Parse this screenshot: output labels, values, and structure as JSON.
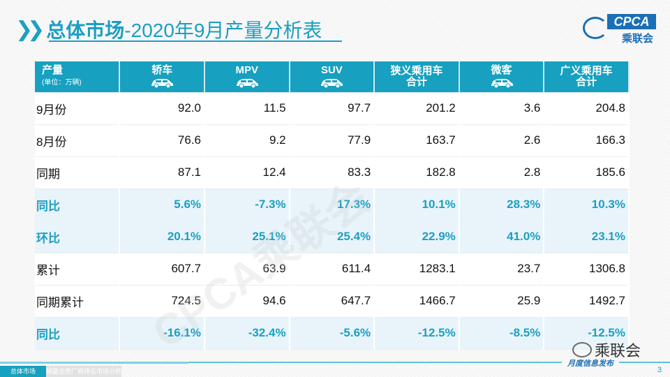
{
  "title": {
    "bold": "总体市场",
    "rest": "-2020年9月产量分析表"
  },
  "logo": {
    "text": "CPCA",
    "cn": "乘联会"
  },
  "header": {
    "first": "产量",
    "unit": "(单位：万辆)",
    "cols": [
      "轿车",
      "MPV",
      "SUV",
      "狭义乘用车\n合计",
      "微客",
      "广义乘用车\n合计"
    ],
    "icons": [
      "sedan-icon",
      "mpv-icon",
      "suv-icon",
      null,
      "van-icon",
      null
    ]
  },
  "rows": [
    {
      "label": "9月份",
      "values": [
        "92.0",
        "11.5",
        "97.7",
        "201.2",
        "3.6",
        "204.8"
      ],
      "highlight": false
    },
    {
      "label": "8月份",
      "values": [
        "76.6",
        "9.2",
        "77.9",
        "163.7",
        "2.6",
        "166.3"
      ],
      "highlight": false
    },
    {
      "label": "同期",
      "values": [
        "87.1",
        "12.4",
        "83.3",
        "182.8",
        "2.8",
        "185.6"
      ],
      "highlight": false
    },
    {
      "label": "同比",
      "values": [
        "5.6%",
        "-7.3%",
        "17.3%",
        "10.1%",
        "28.3%",
        "10.3%"
      ],
      "highlight": true
    },
    {
      "label": "环比",
      "values": [
        "20.1%",
        "25.1%",
        "25.4%",
        "22.9%",
        "41.0%",
        "23.1%"
      ],
      "highlight": true
    },
    {
      "label": "累计",
      "values": [
        "607.7",
        "63.9",
        "611.4",
        "1283.1",
        "23.7",
        "1306.8"
      ],
      "highlight": false
    },
    {
      "label": "同期累计",
      "values": [
        "724.5",
        "94.6",
        "647.7",
        "1466.7",
        "25.9",
        "1492.7"
      ],
      "highlight": false
    },
    {
      "label": "同比",
      "values": [
        "-16.1%",
        "-32.4%",
        "-5.6%",
        "-12.5%",
        "-8.5%",
        "-12.5%"
      ],
      "highlight": true
    }
  ],
  "watermark": "CPCA乘联会",
  "wechat": "乘联会",
  "footer": {
    "publish": "月度信息发布",
    "tabs": [
      "总体市场",
      "销量走势",
      "厂商排名",
      "市场分析"
    ],
    "active": 0,
    "page": "3"
  },
  "colors": {
    "accent": "#17a0c0",
    "brand": "#1a6fb5"
  }
}
